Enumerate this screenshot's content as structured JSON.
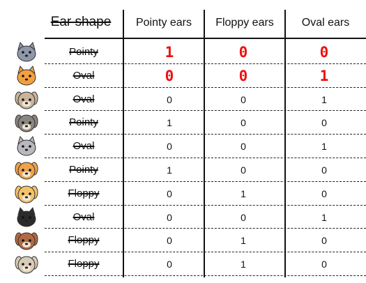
{
  "table": {
    "title": "Ear shape",
    "columns": [
      "Pointy ears",
      "Floppy ears",
      "Oval ears"
    ],
    "rows": [
      {
        "animal": "cat-icon",
        "shape": "Pointy",
        "values": [
          "1",
          "0",
          "0"
        ],
        "handwritten": true,
        "color": "#8e98a8"
      },
      {
        "animal": "cat-icon",
        "shape": "Oval",
        "values": [
          "0",
          "0",
          "1"
        ],
        "handwritten": true,
        "color": "#f2a03f"
      },
      {
        "animal": "dog-icon",
        "shape": "Oval",
        "values": [
          "0",
          "0",
          "1"
        ],
        "handwritten": false,
        "color": "#c8b59a"
      },
      {
        "animal": "dog-icon",
        "shape": "Pointy",
        "values": [
          "1",
          "0",
          "0"
        ],
        "handwritten": false,
        "color": "#8a857f"
      },
      {
        "animal": "cat-icon",
        "shape": "Oval",
        "values": [
          "0",
          "0",
          "1"
        ],
        "handwritten": false,
        "color": "#b8b8bf"
      },
      {
        "animal": "dog-icon",
        "shape": "Pointy",
        "values": [
          "1",
          "0",
          "0"
        ],
        "handwritten": false,
        "color": "#f0a24a"
      },
      {
        "animal": "dog-icon",
        "shape": "Floppy",
        "values": [
          "0",
          "1",
          "0"
        ],
        "handwritten": false,
        "color": "#f3c36a"
      },
      {
        "animal": "cat-icon",
        "shape": "Oval",
        "values": [
          "0",
          "0",
          "1"
        ],
        "handwritten": false,
        "color": "#2b2b2b"
      },
      {
        "animal": "dog-icon",
        "shape": "Floppy",
        "values": [
          "0",
          "1",
          "0"
        ],
        "handwritten": false,
        "color": "#b06a45"
      },
      {
        "animal": "dog-icon",
        "shape": "Floppy",
        "values": [
          "0",
          "1",
          "0"
        ],
        "handwritten": false,
        "color": "#d8cbb8"
      }
    ]
  }
}
